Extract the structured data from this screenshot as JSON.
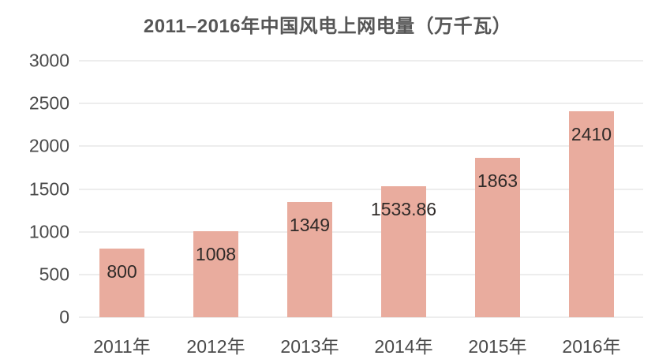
{
  "chart_data": {
    "type": "bar",
    "title": "2011–2016年中国风电上网电量（万千瓦）",
    "categories": [
      "2011年",
      "2012年",
      "2013年",
      "2014年",
      "2015年",
      "2016年"
    ],
    "values": [
      800,
      1008,
      1349,
      1533.86,
      1863,
      2410
    ],
    "value_labels": [
      "800",
      "1008",
      "1349",
      "1533.86",
      "1863",
      "2410"
    ],
    "xlabel": "",
    "ylabel": "",
    "ylim": [
      0,
      3000
    ],
    "yticks": [
      0,
      500,
      1000,
      1500,
      2000,
      2500,
      3000
    ],
    "grid": true,
    "legend": "none",
    "colors": {
      "bar": "#e9ac9e",
      "title": "#565656",
      "axis_text": "#4a4a4a",
      "value_label": "#2f2a28",
      "gridline": "#ededed",
      "background": "#ffffff"
    }
  }
}
